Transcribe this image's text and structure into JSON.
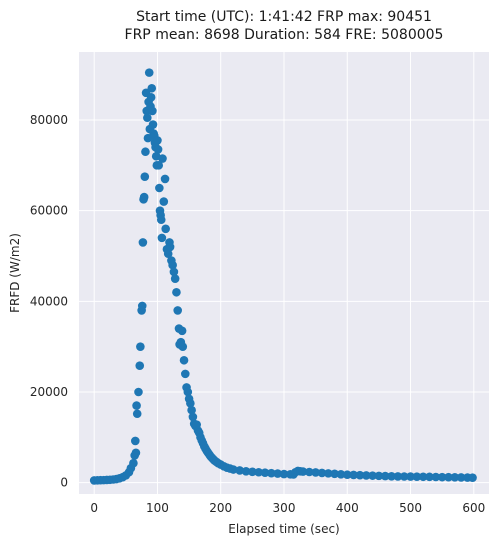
{
  "chart_data": {
    "type": "scatter",
    "title_lines": [
      "Start time (UTC): 1:41:42 FRP max: 90451",
      "FRP mean: 8698 Duration: 584 FRE: 5080005"
    ],
    "xlabel": "Elapsed time (sec)",
    "ylabel": "FRFD (W/m2)",
    "xlim": [
      -24,
      624
    ],
    "ylim": [
      -2500,
      95000
    ],
    "xticks": [
      0,
      100,
      200,
      300,
      400,
      500,
      600
    ],
    "yticks": [
      0,
      20000,
      40000,
      60000,
      80000
    ],
    "grid": true,
    "legend": "none",
    "marker_color": "#1f77b4",
    "background_color": "#eaeaf2",
    "points": [
      [
        0,
        500
      ],
      [
        5,
        520
      ],
      [
        10,
        540
      ],
      [
        15,
        560
      ],
      [
        20,
        600
      ],
      [
        25,
        640
      ],
      [
        30,
        700
      ],
      [
        35,
        800
      ],
      [
        40,
        950
      ],
      [
        45,
        1200
      ],
      [
        50,
        1600
      ],
      [
        55,
        2300
      ],
      [
        58,
        3200
      ],
      [
        62,
        4300
      ],
      [
        64,
        6000
      ],
      [
        65,
        9200
      ],
      [
        66,
        6600
      ],
      [
        67,
        17000
      ],
      [
        68,
        15200
      ],
      [
        70,
        20000
      ],
      [
        72,
        25800
      ],
      [
        73,
        30000
      ],
      [
        75,
        38000
      ],
      [
        76,
        39000
      ],
      [
        77,
        53000
      ],
      [
        78,
        62500
      ],
      [
        79,
        63000
      ],
      [
        80,
        67500
      ],
      [
        81,
        73000
      ],
      [
        82,
        86000
      ],
      [
        83,
        82000
      ],
      [
        84,
        80500
      ],
      [
        85,
        76000
      ],
      [
        86,
        84000
      ],
      [
        87,
        90451
      ],
      [
        88,
        78000
      ],
      [
        89,
        83000
      ],
      [
        90,
        85000
      ],
      [
        91,
        87000
      ],
      [
        92,
        82000
      ],
      [
        93,
        79000
      ],
      [
        94,
        77000
      ],
      [
        95,
        76500
      ],
      [
        96,
        75000
      ],
      [
        97,
        74000
      ],
      [
        98,
        72000
      ],
      [
        99,
        70000
      ],
      [
        100,
        75500
      ],
      [
        101,
        73500
      ],
      [
        102,
        70000
      ],
      [
        103,
        65000
      ],
      [
        104,
        60000
      ],
      [
        105,
        59000
      ],
      [
        106,
        58000
      ],
      [
        107,
        54000
      ],
      [
        108,
        71500
      ],
      [
        110,
        62000
      ],
      [
        112,
        67000
      ],
      [
        113,
        56000
      ],
      [
        115,
        51500
      ],
      [
        117,
        50500
      ],
      [
        119,
        53000
      ],
      [
        120,
        52000
      ],
      [
        122,
        49000
      ],
      [
        124,
        48000
      ],
      [
        126,
        46500
      ],
      [
        128,
        45000
      ],
      [
        130,
        42000
      ],
      [
        132,
        38000
      ],
      [
        134,
        34000
      ],
      [
        135,
        30500
      ],
      [
        137,
        31000
      ],
      [
        139,
        33500
      ],
      [
        140,
        30000
      ],
      [
        142,
        27000
      ],
      [
        144,
        24000
      ],
      [
        146,
        21000
      ],
      [
        148,
        20000
      ],
      [
        150,
        18500
      ],
      [
        152,
        17500
      ],
      [
        154,
        16000
      ],
      [
        156,
        14500
      ],
      [
        158,
        13000
      ],
      [
        160,
        12500
      ],
      [
        162,
        12800
      ],
      [
        164,
        11500
      ],
      [
        166,
        11000
      ],
      [
        168,
        10000
      ],
      [
        170,
        9300
      ],
      [
        172,
        8700
      ],
      [
        174,
        8000
      ],
      [
        176,
        7500
      ],
      [
        178,
        7000
      ],
      [
        180,
        6600
      ],
      [
        182,
        6200
      ],
      [
        184,
        5800
      ],
      [
        186,
        5500
      ],
      [
        188,
        5200
      ],
      [
        190,
        4900
      ],
      [
        193,
        4600
      ],
      [
        196,
        4300
      ],
      [
        200,
        4000
      ],
      [
        205,
        3600
      ],
      [
        210,
        3300
      ],
      [
        215,
        3100
      ],
      [
        220,
        2900
      ],
      [
        230,
        2700
      ],
      [
        240,
        2500
      ],
      [
        250,
        2400
      ],
      [
        260,
        2300
      ],
      [
        270,
        2200
      ],
      [
        280,
        2100
      ],
      [
        290,
        2000
      ],
      [
        300,
        1900
      ],
      [
        310,
        1850
      ],
      [
        315,
        1800
      ],
      [
        318,
        2300
      ],
      [
        322,
        2600
      ],
      [
        326,
        2500
      ],
      [
        330,
        2450
      ],
      [
        340,
        2350
      ],
      [
        350,
        2250
      ],
      [
        360,
        2150
      ],
      [
        370,
        2050
      ],
      [
        380,
        1950
      ],
      [
        390,
        1850
      ],
      [
        400,
        1750
      ],
      [
        410,
        1700
      ],
      [
        420,
        1650
      ],
      [
        430,
        1600
      ],
      [
        440,
        1550
      ],
      [
        450,
        1500
      ],
      [
        460,
        1450
      ],
      [
        470,
        1400
      ],
      [
        480,
        1380
      ],
      [
        490,
        1360
      ],
      [
        500,
        1340
      ],
      [
        510,
        1320
      ],
      [
        520,
        1300
      ],
      [
        530,
        1280
      ],
      [
        540,
        1250
      ],
      [
        550,
        1220
      ],
      [
        560,
        1200
      ],
      [
        570,
        1180
      ],
      [
        580,
        1160
      ],
      [
        590,
        1130
      ],
      [
        598,
        1100
      ]
    ]
  }
}
